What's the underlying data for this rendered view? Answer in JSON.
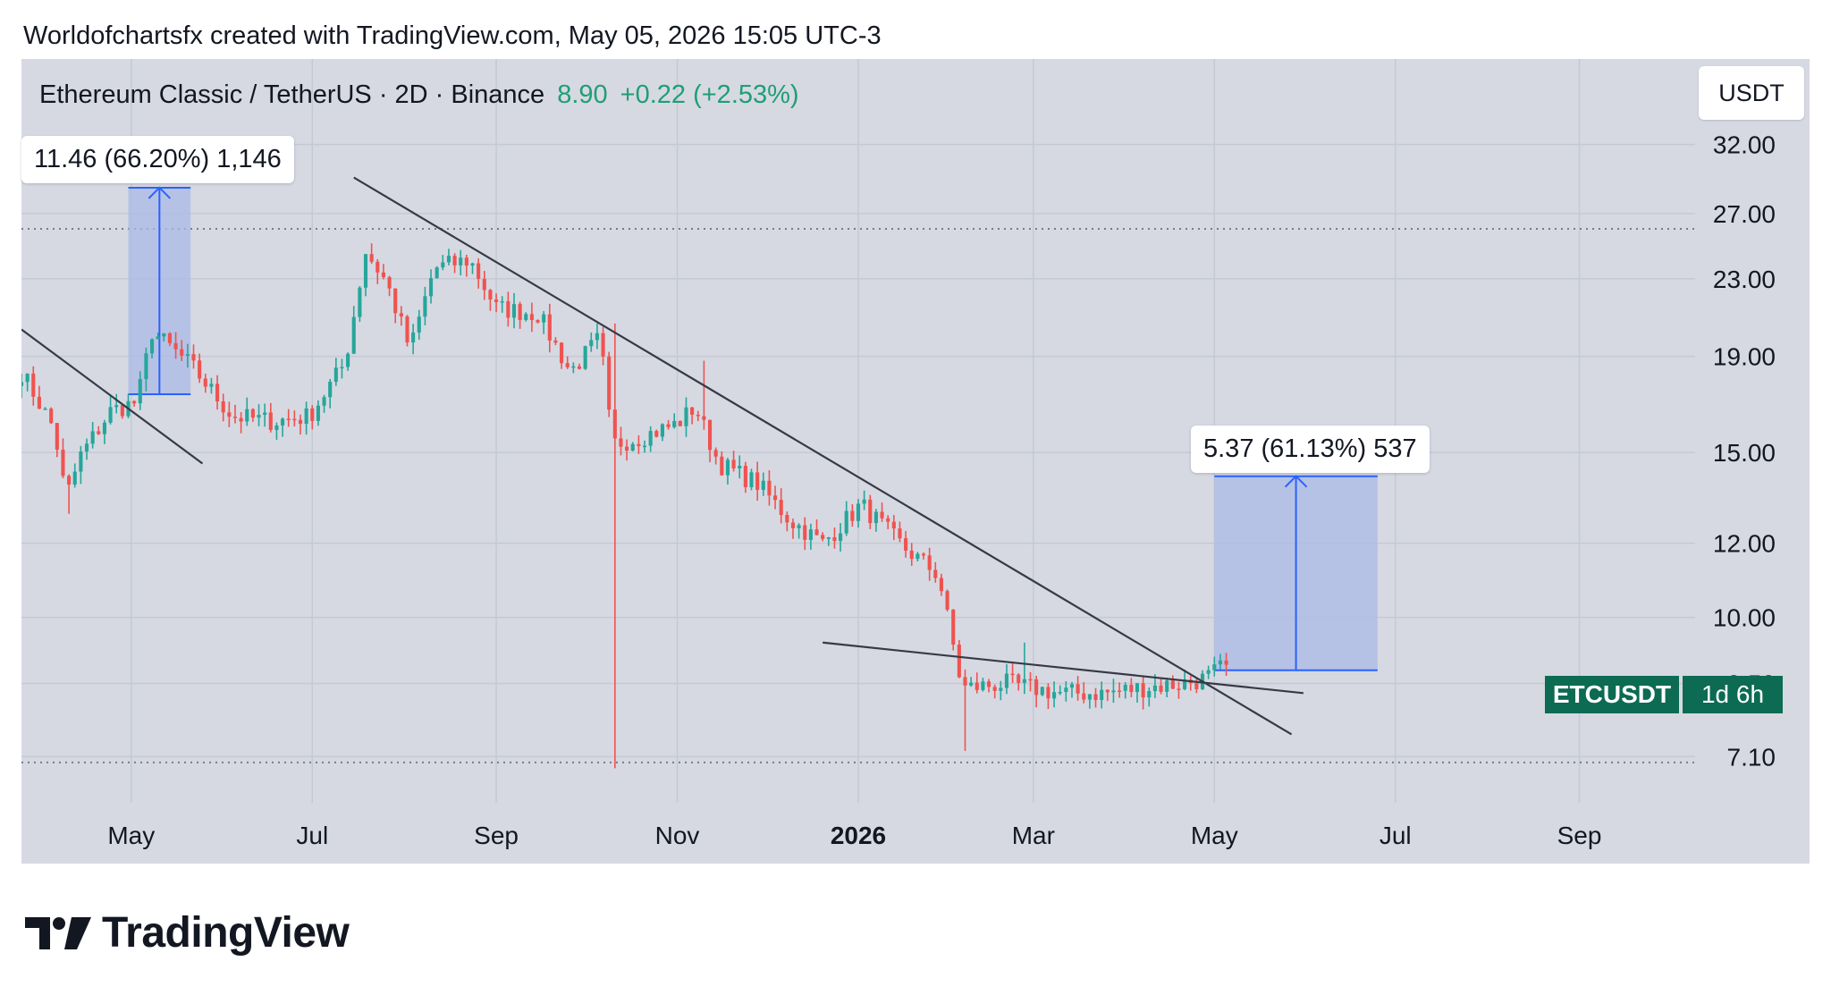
{
  "caption": "Worldofchartsfx created with TradingView.com, May 05, 2026 15:05 UTC-3",
  "header": {
    "symbol": "Ethereum Classic / TetherUS · 2D · Binance",
    "last_price": "8.90",
    "change": "+0.22 (+2.53%)",
    "currency_button": "USDT"
  },
  "measurements": {
    "left_label": "11.46 (66.20%) 1,146",
    "right_label": "5.37 (61.13%) 537"
  },
  "price_tag": {
    "symbol": "ETCUSDT",
    "countdown": "1d 6h"
  },
  "footer": {
    "brand": "TradingView"
  },
  "colors": {
    "up": "#26a69a",
    "down": "#ef5350",
    "background": "#d6d9e2",
    "measure_fill": "#a9b9e6",
    "measure_line": "#2962ff",
    "tag": "#0c6b52"
  },
  "chart_data": {
    "type": "candlestick",
    "title": "",
    "xlabel": "",
    "ylabel": "",
    "scale": "log",
    "ylim": [
      6.8,
      36
    ],
    "y_ticks": [
      7.1,
      8.5,
      10.0,
      12.0,
      15.0,
      19.0,
      23.0,
      27.0,
      32.0
    ],
    "y_tick_labels": [
      "7.10",
      "8.50",
      "10.00",
      "12.00",
      "15.00",
      "19.00",
      "23.00",
      "27.00",
      "32.00"
    ],
    "x_range": [
      "2025-03-25",
      "2026-10-10"
    ],
    "x_ticks": [
      {
        "date": "2025-05-01",
        "label": "May",
        "bold": false
      },
      {
        "date": "2025-07-01",
        "label": "Jul",
        "bold": false
      },
      {
        "date": "2025-09-01",
        "label": "Sep",
        "bold": false
      },
      {
        "date": "2025-11-01",
        "label": "Nov",
        "bold": false
      },
      {
        "date": "2026-01-01",
        "label": "2026",
        "bold": true
      },
      {
        "date": "2026-03-01",
        "label": "Mar",
        "bold": false
      },
      {
        "date": "2026-05-01",
        "label": "May",
        "bold": false
      },
      {
        "date": "2026-07-01",
        "label": "Jul",
        "bold": false
      },
      {
        "date": "2026-09-01",
        "label": "Sep",
        "bold": false
      }
    ],
    "anchors": [
      {
        "date": "2025-03-25",
        "price": 18.3
      },
      {
        "date": "2025-04-05",
        "price": 15.9
      },
      {
        "date": "2025-04-09",
        "price": 13.4
      },
      {
        "date": "2025-04-14",
        "price": 14.9
      },
      {
        "date": "2025-04-24",
        "price": 16.6
      },
      {
        "date": "2025-05-03",
        "price": 17.0
      },
      {
        "date": "2025-05-08",
        "price": 20.2
      },
      {
        "date": "2025-05-21",
        "price": 18.6
      },
      {
        "date": "2025-06-04",
        "price": 16.4
      },
      {
        "date": "2025-06-18",
        "price": 16.2
      },
      {
        "date": "2025-06-30",
        "price": 16.4
      },
      {
        "date": "2025-07-12",
        "price": 18.7
      },
      {
        "date": "2025-07-19",
        "price": 24.6
      },
      {
        "date": "2025-07-26",
        "price": 22.8
      },
      {
        "date": "2025-08-03",
        "price": 19.3
      },
      {
        "date": "2025-08-11",
        "price": 23.6
      },
      {
        "date": "2025-08-23",
        "price": 24.1
      },
      {
        "date": "2025-09-01",
        "price": 21.4
      },
      {
        "date": "2025-09-15",
        "price": 21.1
      },
      {
        "date": "2025-09-26",
        "price": 18.3
      },
      {
        "date": "2025-10-06",
        "price": 19.9
      },
      {
        "date": "2025-10-10",
        "price": 15.3
      },
      {
        "date": "2025-10-20",
        "price": 15.6
      },
      {
        "date": "2025-11-01",
        "price": 16.1
      },
      {
        "date": "2025-11-07",
        "price": 16.8
      },
      {
        "date": "2025-11-15",
        "price": 14.6
      },
      {
        "date": "2025-11-28",
        "price": 13.9
      },
      {
        "date": "2025-12-09",
        "price": 12.7
      },
      {
        "date": "2025-12-20",
        "price": 12.0
      },
      {
        "date": "2026-01-02",
        "price": 13.2
      },
      {
        "date": "2026-01-16",
        "price": 11.9
      },
      {
        "date": "2026-01-28",
        "price": 11.1
      },
      {
        "date": "2026-02-05",
        "price": 8.4
      },
      {
        "date": "2026-02-20",
        "price": 8.5
      },
      {
        "date": "2026-03-10",
        "price": 8.3
      },
      {
        "date": "2026-03-25",
        "price": 8.3
      },
      {
        "date": "2026-04-05",
        "price": 8.4
      },
      {
        "date": "2026-04-20",
        "price": 8.5
      },
      {
        "date": "2026-04-28",
        "price": 8.6
      },
      {
        "date": "2026-05-05",
        "price": 8.9
      }
    ],
    "spikes": [
      {
        "date": "2025-04-10",
        "low": 12.9
      },
      {
        "date": "2025-10-10",
        "high": 20.6,
        "low": 6.9
      },
      {
        "date": "2025-11-09",
        "high": 18.8
      },
      {
        "date": "2026-02-05",
        "low": 7.2
      },
      {
        "date": "2026-02-26",
        "high": 9.4
      }
    ],
    "reference_lines": [
      {
        "price": 26.0,
        "style": "dotted"
      },
      {
        "price": 7.0,
        "style": "dotted"
      }
    ],
    "trendlines": [
      {
        "from": {
          "date": "2025-03-25",
          "price": 20.3
        },
        "to": {
          "date": "2025-05-25",
          "price": 14.6
        }
      },
      {
        "from": {
          "date": "2025-07-15",
          "price": 29.5
        },
        "to": {
          "date": "2026-05-27",
          "price": 7.5
        }
      },
      {
        "from": {
          "date": "2025-12-20",
          "price": 9.4
        },
        "to": {
          "date": "2026-05-31",
          "price": 8.3
        }
      }
    ],
    "measurements": [
      {
        "from_date": "2025-04-30",
        "to_date": "2025-05-21",
        "low": 17.31,
        "high": 28.77,
        "change": 11.46,
        "percent": 66.2,
        "label": "11.46 (66.20%) 1,146"
      },
      {
        "from_date": "2026-05-01",
        "to_date": "2026-06-25",
        "low": 8.78,
        "high": 14.15,
        "change": 5.37,
        "percent": 61.13,
        "label": "5.37 (61.13%) 537"
      }
    ],
    "last_price": 8.9
  }
}
